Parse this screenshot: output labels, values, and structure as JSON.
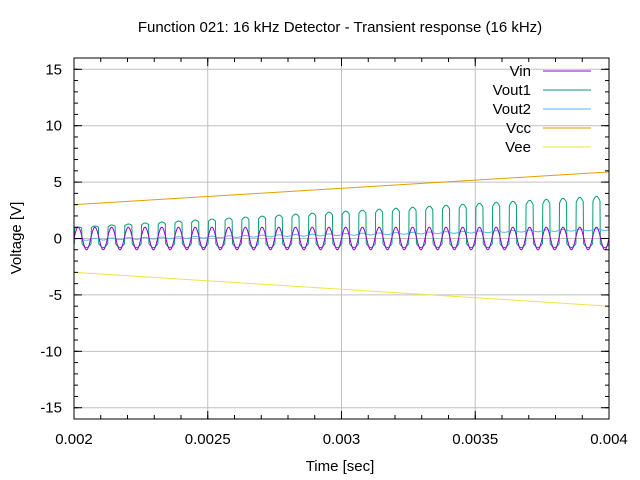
{
  "chart_data": {
    "type": "line",
    "title": "Function 021: 16 kHz Detector - Transient response (16 kHz)",
    "xlabel": "Time [sec]",
    "ylabel": "Voltage [V]",
    "xlim": [
      0.002,
      0.004
    ],
    "ylim": [
      -16,
      16
    ],
    "x_ticks": [
      0.002,
      0.0025,
      0.003,
      0.0035,
      0.004
    ],
    "x_tick_labels": [
      "0.002",
      "0.0025",
      "0.003",
      "0.0035",
      "0.004"
    ],
    "y_ticks": [
      -15,
      -10,
      -5,
      0,
      5,
      10,
      15
    ],
    "y_tick_labels": [
      "-15",
      "-10",
      "-5",
      "0",
      "5",
      "10",
      "15"
    ],
    "grid": true,
    "legend_position": "top-right",
    "series": [
      {
        "name": "Vin",
        "color": "#9400d3",
        "description": "sine 16 kHz",
        "frequency_hz": 16000,
        "amplitude": 1.0,
        "offset": 0
      },
      {
        "name": "Vout1",
        "color": "#009e73",
        "frequency_hz": 16000,
        "high_start": 1.0,
        "high_end": 3.8,
        "low": -0.5
      },
      {
        "name": "Vout2",
        "color": "#56b4e9",
        "start": -0.1,
        "end": 0.8
      },
      {
        "name": "Vcc",
        "color": "#e69f00",
        "start": 3.0,
        "end": 5.9
      },
      {
        "name": "Vee",
        "color": "#f0e442",
        "start": -3.0,
        "end": -6.0
      }
    ]
  }
}
